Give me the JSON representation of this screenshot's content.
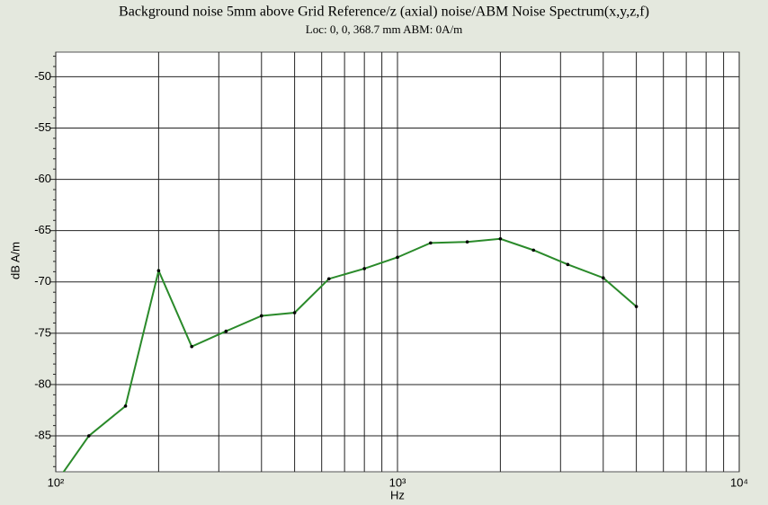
{
  "chart_data": {
    "type": "line",
    "title": "Background noise 5mm above Grid Reference/z (axial) noise/ABM Noise Spectrum(x,y,z,f)",
    "subtitle": "Loc: 0, 0, 368.7 mm ABM: 0A/m",
    "x_label": "Hz",
    "y_label": "dB A/m",
    "x_scale": "log",
    "grid": true,
    "x": [
      100,
      125,
      160,
      200,
      250,
      315,
      400,
      500,
      630,
      800,
      1000,
      1250,
      1600,
      2000,
      2500,
      3150,
      4000,
      5000
    ],
    "series": [
      {
        "name": "noise",
        "color": "#2a8a2a",
        "values": [
          -89.6,
          -85.0,
          -82.1,
          -68.9,
          -76.3,
          -74.8,
          -73.3,
          -73.0,
          -69.7,
          -68.7,
          -67.6,
          -66.2,
          -66.1,
          -65.8,
          -66.9,
          -68.3,
          -69.6,
          -72.4
        ]
      }
    ],
    "xlim": [
      100,
      10000
    ],
    "xticks": [
      {
        "value": 100,
        "label": "10²"
      },
      {
        "value": 1000,
        "label": "10³"
      },
      {
        "value": 10000,
        "label": "10⁴"
      }
    ],
    "xminorticks": [
      200,
      300,
      400,
      500,
      600,
      700,
      800,
      900,
      2000,
      3000,
      4000,
      5000,
      6000,
      7000,
      8000,
      9000
    ],
    "ylim": [
      -88.5,
      -47.6
    ],
    "yticks": [
      -85,
      -80,
      -75,
      -70,
      -65,
      -60,
      -55,
      -50
    ],
    "yminorticks": [
      -88,
      -87,
      -86,
      -84,
      -83,
      -82,
      -81,
      -79,
      -78,
      -77,
      -76,
      -74,
      -73,
      -72,
      -71,
      -69,
      -68,
      -67,
      -66,
      -64,
      -63,
      -62,
      -61,
      -59,
      -58,
      -57,
      -56,
      -54,
      -53,
      -52,
      -51,
      -49,
      -48
    ]
  }
}
